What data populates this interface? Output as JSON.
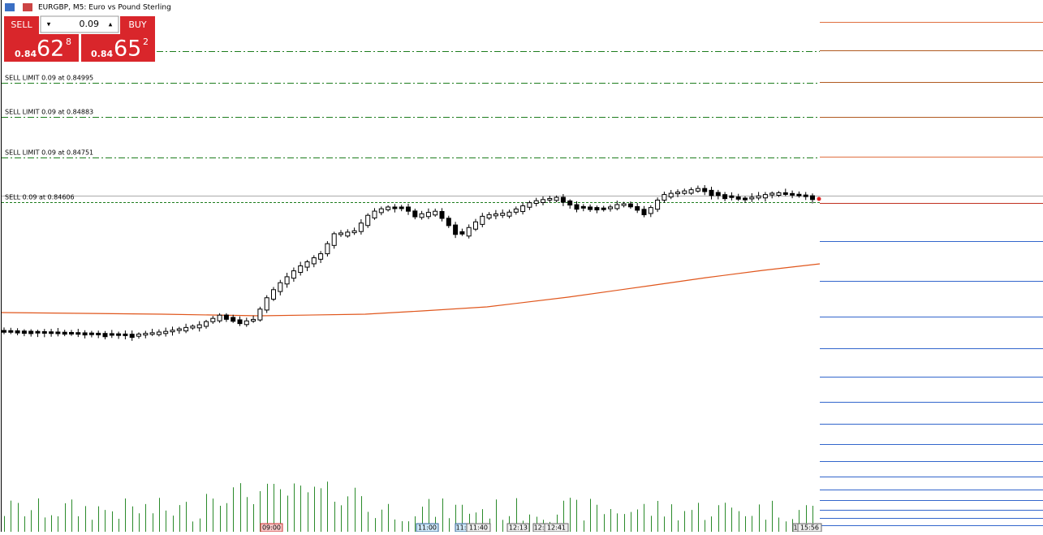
{
  "title": "EURGBP, M5:  Euro vs Pound Sterling",
  "trade_panel": {
    "sell_label": "SELL",
    "lot": "0.09",
    "buy_label": "BUY",
    "bid": {
      "prefix": "0.84",
      "big": "62",
      "small": "8"
    },
    "ask": {
      "prefix": "0.84",
      "big": "65",
      "small": "2"
    }
  },
  "orders": [
    "SELL LIMIT 0.09 at 0.84995",
    "SELL LIMIT 0.09 at 0.84883",
    "SELL LIMIT 0.09 at 0.84751",
    "SELL 0.09 at 0.84606"
  ],
  "time_labels": [
    "09:00",
    "11:00",
    "11:",
    "11:40",
    "12:13",
    "12:",
    "12:41",
    "1",
    "15:56"
  ]
}
